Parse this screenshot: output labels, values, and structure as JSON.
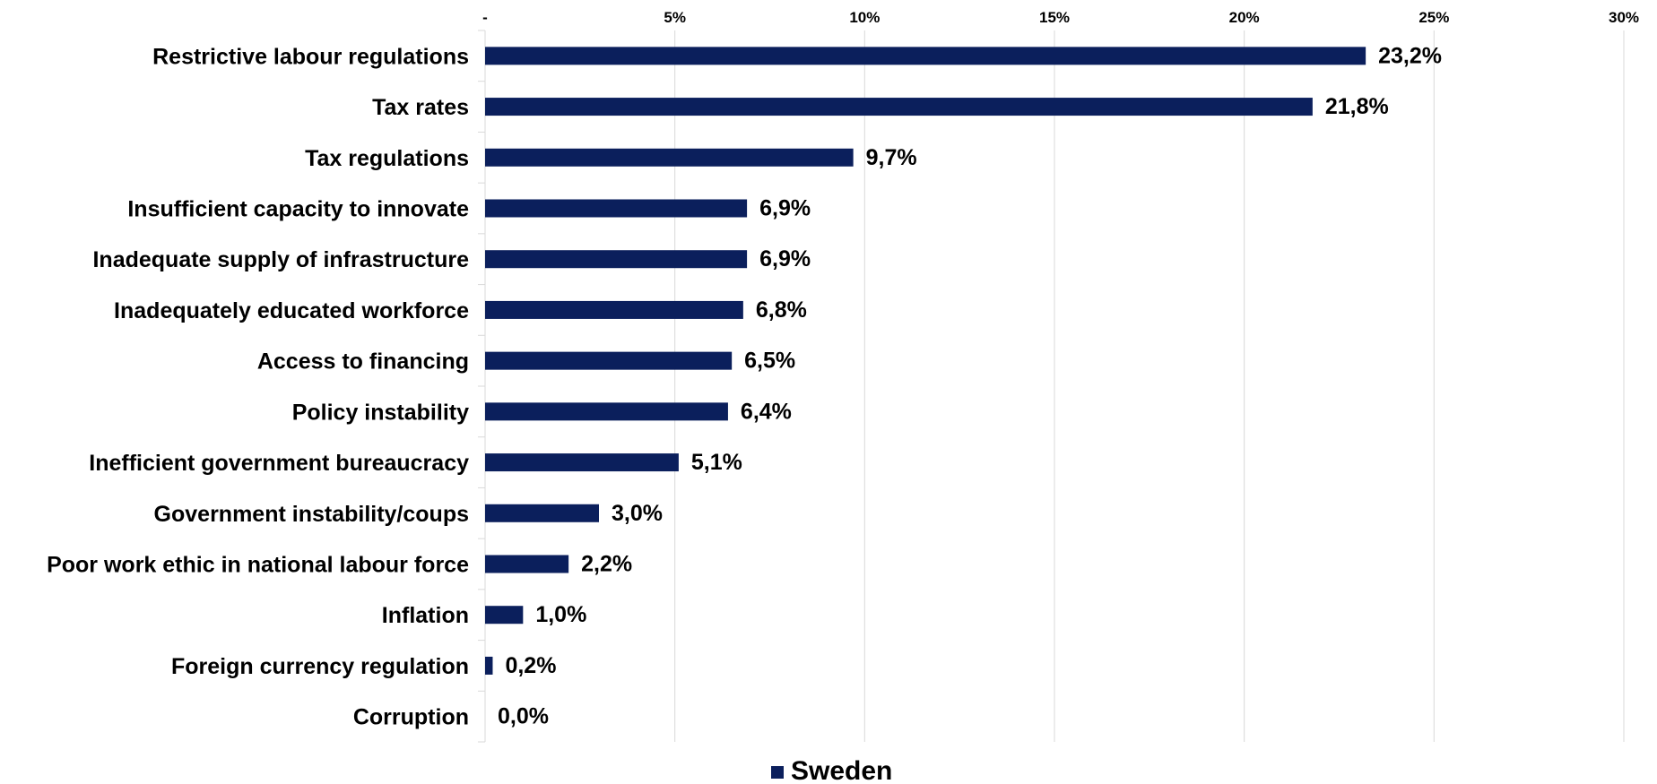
{
  "chart_data": {
    "type": "bar",
    "orientation": "horizontal",
    "categories": [
      "Restrictive labour regulations",
      "Tax rates",
      "Tax regulations",
      "Insufficient capacity to innovate",
      "Inadequate supply of infrastructure",
      "Inadequately educated workforce",
      "Access to financing",
      "Policy instability",
      "Inefficient government bureaucracy",
      "Government instability/coups",
      "Poor work ethic in national labour force",
      "Inflation",
      "Foreign currency regulation",
      "Corruption"
    ],
    "series": [
      {
        "name": "Sweden",
        "color": "#0b1f5c",
        "values": [
          23.2,
          21.8,
          9.7,
          6.9,
          6.9,
          6.8,
          6.5,
          6.4,
          5.1,
          3.0,
          2.2,
          1.0,
          0.2,
          0.0
        ],
        "labels": [
          "23,2%",
          "21,8%",
          "9,7%",
          "6,9%",
          "6,9%",
          "6,8%",
          "6,5%",
          "6,4%",
          "5,1%",
          "3,0%",
          "2,2%",
          "1,0%",
          "0,2%",
          "0,0%"
        ]
      }
    ],
    "x_ticks": [
      {
        "value": 0,
        "label": "-"
      },
      {
        "value": 5,
        "label": "5%"
      },
      {
        "value": 10,
        "label": "10%"
      },
      {
        "value": 15,
        "label": "15%"
      },
      {
        "value": 20,
        "label": "20%"
      },
      {
        "value": 25,
        "label": "25%"
      },
      {
        "value": 30,
        "label": "30%"
      }
    ],
    "xlim": [
      0,
      30
    ],
    "x_axis_position": "top",
    "grid": true,
    "gridline_color": "#d9d9d9",
    "legend_position": "bottom-center",
    "title": "",
    "xlabel": "",
    "ylabel": ""
  }
}
